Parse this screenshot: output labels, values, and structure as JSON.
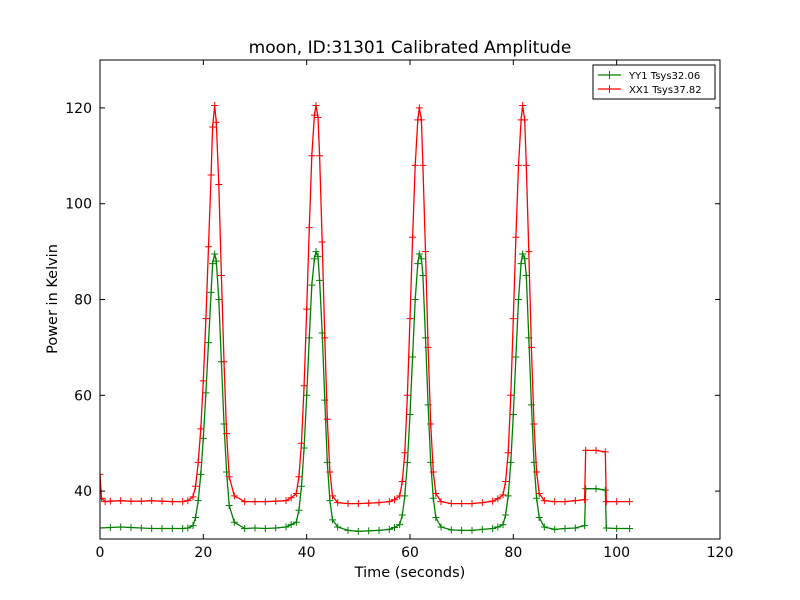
{
  "chart_data": {
    "type": "line",
    "title": "moon, ID:31301 Calibrated Amplitude",
    "xlabel": "Time (seconds)",
    "ylabel": "Power in Kelvin",
    "xlim": [
      0,
      120
    ],
    "ylim": [
      30,
      130
    ],
    "xticks": [
      0,
      20,
      40,
      60,
      80,
      100,
      120
    ],
    "yticks": [
      40,
      60,
      80,
      100,
      120
    ],
    "grid": false,
    "legend_position": "top-right",
    "series": [
      {
        "name": "YY1 Tsys32.06",
        "color": "#008000",
        "x": [
          0,
          2,
          4,
          6,
          8,
          10,
          12,
          14,
          16,
          17,
          18,
          18.5,
          19,
          19.5,
          20,
          20.5,
          21,
          21.5,
          21.8,
          22.2,
          22.5,
          23,
          23.5,
          24,
          24.5,
          25,
          26,
          28,
          30,
          32,
          34,
          36,
          37,
          38,
          38.5,
          39,
          39.5,
          40,
          40.5,
          41,
          41.5,
          41.8,
          42.2,
          42.5,
          43,
          43.5,
          44,
          44.5,
          45,
          46,
          48,
          50,
          52,
          54,
          56,
          57,
          58,
          58.5,
          59,
          59.5,
          60,
          60.5,
          61,
          61.5,
          61.8,
          62.2,
          62.5,
          63,
          63.5,
          64,
          64.5,
          65,
          66,
          68,
          70,
          72,
          74,
          76,
          77,
          78,
          78.5,
          79,
          79.5,
          80,
          80.5,
          81,
          81.5,
          81.8,
          82.2,
          82.5,
          83,
          83.5,
          84,
          84.5,
          85,
          86,
          88,
          90,
          92,
          93.8,
          94,
          96,
          97.8,
          98,
          100,
          102.5
        ],
        "y": [
          32.3,
          32.4,
          32.5,
          32.4,
          32.3,
          32.2,
          32.2,
          32.2,
          32.2,
          32.3,
          32.8,
          34.5,
          38,
          43.5,
          51,
          60.5,
          71,
          81.5,
          87.5,
          89.5,
          88,
          80,
          67,
          54,
          44,
          37,
          33.5,
          32.2,
          32.3,
          32.2,
          32.3,
          32.5,
          33,
          33.5,
          36,
          41,
          49,
          60,
          72,
          83,
          88.5,
          90,
          89,
          84,
          73,
          59,
          46,
          38,
          34,
          32.5,
          31.8,
          31.6,
          31.7,
          31.8,
          32,
          32.4,
          33,
          35,
          39,
          46,
          56,
          68,
          80,
          87.5,
          89.5,
          88.5,
          85,
          72,
          58,
          46,
          38.5,
          34.5,
          32.5,
          31.9,
          31.8,
          31.8,
          32,
          32.2,
          32.5,
          33,
          35,
          39,
          46,
          56,
          68,
          80,
          87.5,
          89.5,
          88.5,
          85,
          72,
          58,
          46,
          38.5,
          34.5,
          32.5,
          32,
          32.2,
          32.3,
          32.8,
          40.5,
          40.5,
          40.2,
          32.3,
          32.2,
          32.2
        ]
      },
      {
        "name": "XX1 Tsys37.82",
        "color": "#ff0000",
        "x": [
          0,
          0.3,
          1,
          2,
          4,
          6,
          8,
          10,
          12,
          14,
          16,
          17,
          18,
          18.5,
          19,
          19.5,
          20,
          20.5,
          21,
          21.5,
          21.8,
          22.2,
          22.5,
          23,
          23.5,
          24,
          24.5,
          25,
          26,
          28,
          30,
          32,
          34,
          36,
          37,
          38,
          38.5,
          39,
          39.5,
          40,
          40.5,
          41,
          41.5,
          41.8,
          42.2,
          42.5,
          43,
          43.5,
          44,
          44.5,
          45,
          46,
          48,
          50,
          52,
          54,
          56,
          57,
          58,
          58.5,
          59,
          59.5,
          60,
          60.5,
          61,
          61.5,
          61.8,
          62.2,
          62.5,
          63,
          63.5,
          64,
          64.5,
          65,
          66,
          68,
          70,
          72,
          74,
          76,
          77,
          78,
          78.5,
          79,
          79.5,
          80,
          80.5,
          81,
          81.5,
          81.8,
          82.2,
          82.5,
          83,
          83.5,
          84,
          84.5,
          85,
          86,
          88,
          90,
          92,
          93.8,
          94,
          96,
          97.8,
          98,
          100,
          102.5
        ],
        "y": [
          43.5,
          38.5,
          37.8,
          37.9,
          38,
          37.9,
          37.9,
          38,
          37.9,
          37.8,
          37.8,
          38,
          38.8,
          41,
          46,
          53,
          63,
          76,
          91,
          106,
          116,
          120.5,
          117,
          104,
          85,
          67,
          52,
          43,
          39,
          37.8,
          37.8,
          37.8,
          37.9,
          38,
          38.6,
          39.5,
          43,
          50,
          62,
          78,
          95,
          110,
          118.5,
          120.5,
          118,
          110,
          92,
          72,
          55,
          44,
          39,
          37.6,
          37.4,
          37.4,
          37.5,
          37.6,
          37.8,
          38.2,
          39,
          42,
          48,
          60,
          76,
          93,
          108,
          117.5,
          120,
          117.5,
          108,
          90,
          70,
          54,
          44,
          39.5,
          37.8,
          37.4,
          37.4,
          37.4,
          37.6,
          37.9,
          38.4,
          39.2,
          42,
          48,
          60,
          76,
          93,
          108,
          117.5,
          120.5,
          117.5,
          108,
          90,
          70,
          54,
          44,
          39.5,
          38,
          37.8,
          37.8,
          38,
          38.2,
          48.5,
          48.5,
          48.2,
          37.8,
          37.8,
          37.8
        ]
      }
    ]
  }
}
